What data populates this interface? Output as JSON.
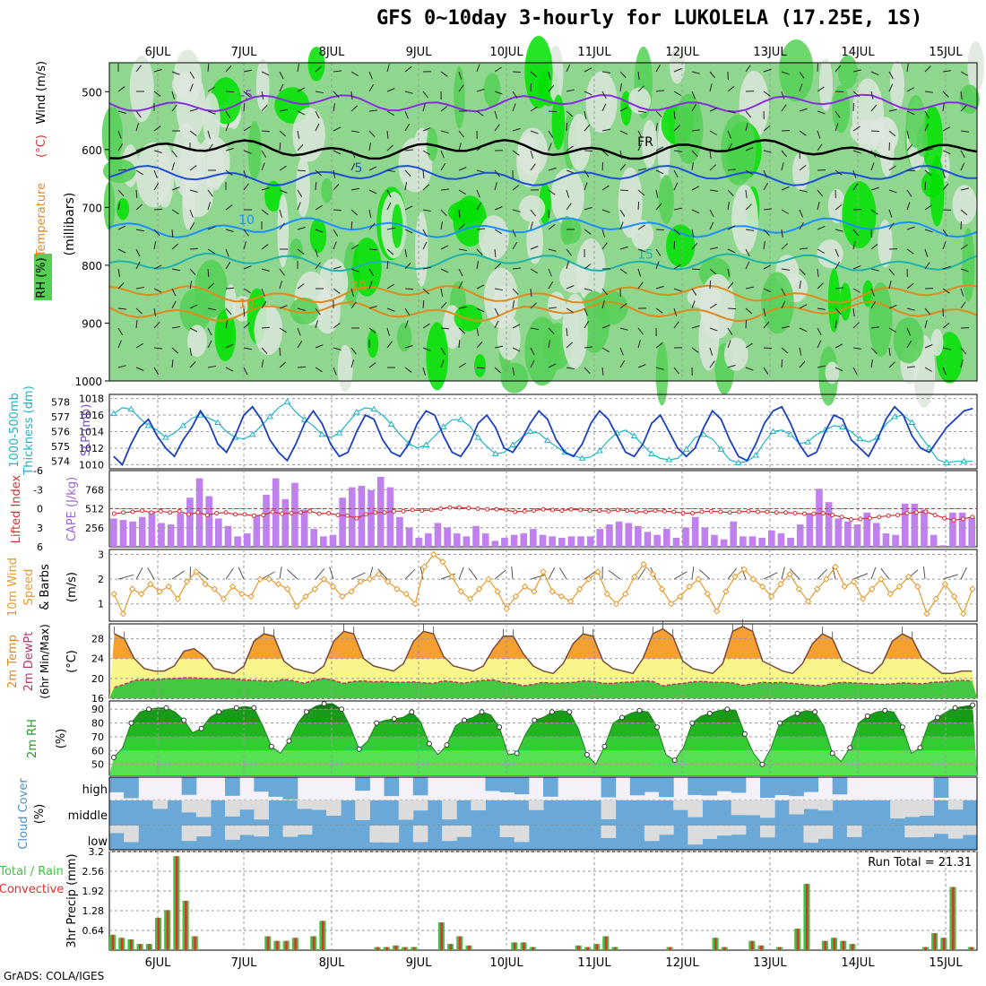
{
  "title": "GFS 0~10day 3-hourly for LUKOLELA (17.25E, 1S)",
  "credit": "GrADS: COLA/IGES",
  "chart_data": [
    {
      "panel": "upper-air",
      "type": "heatmap",
      "x_tick_labels": [
        "6JUL",
        "7JUL",
        "8JUL",
        "9JUL",
        "10JUL",
        "11JUL",
        "12JUL",
        "13JUL",
        "14JUL",
        "15JUL"
      ],
      "ylabel_parts": [
        "RH (%)",
        "Temperature",
        "(°C)",
        "Wind",
        "(m/s)"
      ],
      "yunit": "(millibars)",
      "y_ticks": [
        500,
        600,
        700,
        800,
        900,
        1000
      ],
      "ylim": [
        1000,
        450
      ],
      "rh_shading": [
        "#dde6dd",
        "#bfd6bf",
        "#8fd68f",
        "#55d055",
        "#00e000"
      ],
      "temperature_contours": [
        {
          "label": "-5",
          "pressure": 520,
          "color": "#8a2be2"
        },
        {
          "label": "FR",
          "pressure": 600,
          "color": "#000000"
        },
        {
          "label": "5",
          "pressure": 645,
          "color": "#1f4fd8"
        },
        {
          "label": "10",
          "pressure": 735,
          "color": "#1e90ff"
        },
        {
          "label": "15",
          "pressure": 795,
          "color": "#20b2aa"
        },
        {
          "label": "20",
          "pressure": 850,
          "color": "#e08a1e"
        },
        {
          "label": "10",
          "pressure": 880,
          "color": "#e08a1e"
        }
      ]
    },
    {
      "panel": "thickness-slp",
      "type": "line",
      "left_axis_label": [
        "1000-500mb",
        "Thickness (dm)"
      ],
      "right_axis_label": [
        "SLP (mb)"
      ],
      "left_ticks": [
        574,
        575,
        576,
        577,
        578
      ],
      "right_ticks": [
        1010,
        1012,
        1014,
        1016,
        1018
      ],
      "ylim_left": [
        573.5,
        578.5
      ],
      "ylim_right": [
        1009.5,
        1018.5
      ],
      "series": [
        {
          "color": "#20b2c8",
          "axis": "left",
          "values": [
            577.2,
            577.6,
            577.5,
            576.9,
            576.4,
            576.1,
            575.6,
            575.9,
            576.4,
            576.9,
            577.1,
            576.9,
            576.6,
            576.0,
            575.6,
            575.5,
            575.8,
            576.4,
            577.0,
            577.6,
            578.0,
            577.3,
            576.8,
            576.4,
            575.8,
            575.6,
            575.9,
            576.6,
            577.3,
            577.6,
            577.5,
            577.1,
            576.5,
            575.8,
            575.2,
            574.9,
            575.1,
            575.7,
            576.3,
            576.8,
            576.8,
            576.4,
            575.6,
            575.0,
            574.5,
            574.6,
            575.1,
            575.6,
            576.0,
            575.9,
            575.4,
            575.0,
            574.6,
            574.4,
            574.2,
            574.3,
            574.7,
            575.4,
            575.9,
            576.1,
            575.7,
            575.1,
            574.5,
            574.2,
            574.1,
            574.2,
            574.8,
            575.6,
            575.8,
            575.5,
            574.8,
            574.1,
            573.9,
            574.0,
            574.4,
            575.3,
            576.0,
            576.1,
            575.8,
            575.2,
            575.3,
            575.8,
            576.1,
            576.4,
            576.3,
            576.0,
            575.5,
            575.3,
            575.6,
            576.5,
            577.0,
            577.1,
            576.6,
            575.7,
            574.9,
            574.1,
            573.9,
            574.0,
            574.0,
            574.0
          ]
        },
        {
          "color": "#1a3fbf",
          "axis": "right",
          "values": [
            1011.0,
            1010.0,
            1012.5,
            1014.5,
            1015.5,
            1013.5,
            1012.0,
            1011.0,
            1013.0,
            1014.5,
            1016.5,
            1015.0,
            1012.5,
            1011.5,
            1013.5,
            1016.0,
            1017.0,
            1015.5,
            1013.0,
            1011.5,
            1010.5,
            1012.5,
            1015.0,
            1016.5,
            1015.0,
            1012.5,
            1011.0,
            1011.5,
            1014.0,
            1016.0,
            1015.5,
            1013.0,
            1011.5,
            1011.0,
            1012.5,
            1015.0,
            1016.5,
            1016.0,
            1013.5,
            1011.5,
            1011.0,
            1012.5,
            1015.0,
            1016.0,
            1014.5,
            1012.0,
            1011.5,
            1013.0,
            1015.0,
            1016.5,
            1015.5,
            1013.0,
            1011.5,
            1011.0,
            1012.5,
            1015.0,
            1016.5,
            1015.5,
            1013.5,
            1011.5,
            1011.0,
            1012.5,
            1015.0,
            1016.0,
            1014.0,
            1012.0,
            1011.0,
            1012.0,
            1014.5,
            1016.5,
            1015.5,
            1013.0,
            1011.0,
            1010.5,
            1012.5,
            1015.0,
            1016.5,
            1017.0,
            1015.0,
            1012.5,
            1011.0,
            1011.5,
            1014.0,
            1016.0,
            1015.5,
            1013.0,
            1012.0,
            1011.0,
            1013.0,
            1015.5,
            1017.0,
            1016.0,
            1013.5,
            1012.0,
            1011.5,
            1013.0,
            1014.5,
            1015.5,
            1016.5,
            1016.8
          ]
        }
      ]
    },
    {
      "panel": "cape-li",
      "type": "bar",
      "left_axis_label": "Lifted Index",
      "right_axis_label": "CAPE (J/kg)",
      "left_ticks": [
        "-6",
        "-3",
        "0",
        "3",
        "6"
      ],
      "right_ticks": [
        256,
        512,
        768
      ],
      "ylim_cape": [
        0,
        1024
      ],
      "cape_values": [
        380,
        360,
        340,
        400,
        460,
        320,
        300,
        450,
        660,
        920,
        680,
        380,
        280,
        140,
        180,
        420,
        700,
        920,
        640,
        860,
        500,
        240,
        140,
        160,
        660,
        800,
        820,
        760,
        940,
        800,
        400,
        260,
        120,
        180,
        320,
        260,
        180,
        140,
        280,
        180,
        80,
        120,
        160,
        180,
        240,
        160,
        140,
        120,
        140,
        140,
        140,
        240,
        300,
        340,
        320,
        280,
        200,
        160,
        240,
        120,
        260,
        400,
        260,
        160,
        100,
        340,
        140,
        140,
        120,
        220,
        180,
        120,
        300,
        440,
        780,
        600,
        380,
        340,
        300,
        460,
        320,
        180,
        160,
        580,
        580,
        500,
        160,
        20,
        460,
        460,
        400
      ],
      "li_values": [
        0.8,
        0.6,
        0.5,
        0.3,
        0.6,
        0.4,
        0.6,
        0.4,
        0.9,
        0.6,
        1.0,
        0.7,
        0.6,
        0.9,
        0.9,
        1.1,
        1.0,
        0.5,
        0.8,
        0.7,
        0.6,
        0.4,
        0.8,
        0.7,
        1.0,
        1.1,
        1.5,
        0.9,
        0.6,
        0.6,
        0.4,
        0.4,
        0.2,
        0.3,
        0.2,
        0.0,
        -0.2,
        -0.2,
        -0.1,
        0.0,
        0.1,
        0.1,
        0.2,
        0.5,
        0.4,
        0.3,
        0.1,
        0.2,
        0.3,
        0.1,
        0.2,
        0.3,
        0.3,
        0.4,
        0.2,
        0.3,
        0.5,
        0.5,
        0.3,
        0.4,
        0.5,
        0.7,
        0.7,
        0.5,
        0.4,
        0.5,
        0.6,
        0.5,
        0.4,
        0.5,
        0.5,
        0.6,
        0.6,
        0.7,
        0.8,
        0.8,
        0.7,
        1.0,
        1.3,
        1.7,
        1.6,
        1.5,
        1.3,
        1.1,
        1.0,
        0.7,
        0.6,
        0.5,
        1.0,
        1.5,
        1.8,
        1.6,
        1.3
      ],
      "li_color": "#d43030",
      "cape_color": "#c080f0"
    },
    {
      "panel": "10m-wind",
      "type": "line",
      "axis_label": [
        "10m Wind",
        "Speed",
        "& Barbs"
      ],
      "unit": "(m/s)",
      "y_ticks": [
        1,
        2,
        3
      ],
      "ylim": [
        0.3,
        3.2
      ],
      "series": [
        {
          "color": "#e69a2e",
          "values": [
            1.4,
            0.6,
            1.6,
            1.4,
            1.8,
            1.5,
            1.7,
            1.2,
            1.9,
            2.3,
            1.8,
            1.6,
            1.2,
            1.7,
            1.4,
            1.3,
            2.0,
            2.0,
            1.8,
            1.6,
            0.9,
            1.3,
            1.6,
            2.0,
            1.7,
            1.3,
            1.5,
            1.9,
            2.0,
            2.2,
            1.9,
            1.6,
            1.4,
            1.0,
            2.5,
            3.0,
            2.7,
            2.1,
            1.5,
            1.2,
            1.6,
            2.0,
            1.5,
            0.8,
            1.3,
            1.7,
            1.5,
            2.3,
            1.5,
            1.3,
            1.1,
            1.6,
            2.0,
            2.3,
            1.4,
            1.0,
            1.4,
            2.1,
            2.6,
            2.2,
            1.6,
            1.0,
            1.3,
            1.7,
            2.0,
            1.4,
            0.7,
            1.5,
            2.1,
            2.4,
            2.0,
            1.7,
            1.3,
            1.8,
            2.2,
            1.6,
            1.1,
            1.6,
            2.0,
            2.5,
            1.7,
            1.9,
            1.2,
            1.6,
            2.0,
            1.4,
            1.7,
            2.1,
            1.7,
            0.6,
            1.2,
            1.8,
            1.3,
            0.6,
            1.6
          ]
        }
      ]
    },
    {
      "panel": "2m-temp",
      "type": "area",
      "axis_label": [
        "2m Temp",
        "2m DewPt",
        "(6hr Min/Max)"
      ],
      "unit": "(°C)",
      "y_ticks": [
        16,
        20,
        24,
        28
      ],
      "ylim": [
        16,
        31
      ],
      "series": [
        {
          "name": "temp",
          "color": "#7a4a3a",
          "values": [
            29.0,
            28.0,
            24.0,
            22.0,
            21.5,
            21.5,
            22.5,
            25.5,
            26.0,
            24.5,
            22.0,
            21.5,
            21.0,
            22.5,
            27.5,
            29.0,
            28.5,
            23.5,
            22.0,
            21.5,
            21.0,
            22.5,
            27.5,
            29.5,
            29.0,
            24.0,
            22.5,
            22.0,
            21.5,
            23.0,
            27.5,
            29.5,
            29.0,
            24.5,
            22.5,
            22.0,
            21.5,
            22.5,
            26.0,
            28.5,
            28.5,
            25.0,
            22.5,
            21.5,
            21.0,
            23.0,
            27.0,
            29.0,
            28.5,
            23.5,
            22.0,
            21.5,
            21.0,
            24.0,
            29.0,
            30.0,
            28.5,
            23.5,
            22.0,
            21.5,
            21.0,
            23.0,
            29.5,
            30.5,
            29.5,
            23.5,
            22.5,
            21.5,
            21.0,
            23.0,
            27.0,
            29.0,
            28.0,
            23.5,
            22.5,
            21.5,
            21.0,
            23.0,
            27.5,
            29.0,
            28.0,
            24.0,
            22.5,
            21.0,
            21.0,
            21.5,
            21.5
          ]
        },
        {
          "name": "dewpoint",
          "color": "#c0306a",
          "values": [
            18.2,
            18.8,
            19.6,
            19.8,
            19.7,
            19.9,
            20.0,
            20.1,
            20.1,
            20.0,
            19.9,
            20.0,
            19.9,
            19.7,
            19.6,
            19.5,
            19.4,
            19.8,
            19.5,
            19.0,
            19.6,
            20.0,
            19.6,
            19.0,
            19.4,
            19.5,
            19.3,
            19.4,
            19.2,
            19.2,
            19.3,
            19.1,
            19.0,
            19.5,
            19.3,
            19.0,
            19.4,
            19.6,
            19.7,
            19.2,
            19.0,
            18.5,
            18.8,
            19.2,
            19.0,
            19.1,
            19.2,
            19.5,
            19.4,
            19.0,
            19.0,
            19.2,
            19.3,
            19.5,
            19.4,
            18.5,
            18.8,
            19.0,
            19.3,
            19.4,
            19.2,
            19.2,
            19.1,
            18.6,
            18.9,
            19.2,
            19.1,
            19.2,
            19.0,
            18.8,
            18.6,
            18.5,
            19.0,
            19.2,
            19.1,
            19.0,
            18.9,
            18.8,
            18.9,
            19.1,
            19.0,
            18.9,
            19.2,
            19.3,
            19.5,
            19.6,
            19.5
          ]
        }
      ]
    },
    {
      "panel": "2m-rh",
      "type": "area",
      "axis_label": "2m RH",
      "unit": "(%)",
      "y_ticks": [
        50,
        60,
        70,
        80,
        90
      ],
      "ylim": [
        42,
        96
      ],
      "series": [
        {
          "name": "rh",
          "color": "#1f7f1f",
          "values": [
            55,
            62,
            80,
            88,
            90,
            91,
            91,
            88,
            82,
            73,
            76,
            84,
            88,
            90,
            91,
            92,
            91,
            78,
            63,
            58,
            67,
            80,
            88,
            92,
            94,
            94,
            90,
            77,
            61,
            67,
            80,
            82,
            83,
            84,
            88,
            81,
            65,
            57,
            64,
            78,
            82,
            84,
            88,
            86,
            77,
            57,
            58,
            72,
            82,
            84,
            88,
            89,
            88,
            76,
            57,
            50,
            63,
            80,
            84,
            87,
            89,
            88,
            77,
            57,
            53,
            62,
            80,
            85,
            87,
            89,
            90,
            89,
            72,
            58,
            50,
            62,
            80,
            84,
            87,
            89,
            88,
            78,
            58,
            52,
            62,
            80,
            85,
            88,
            89,
            88,
            77,
            58,
            62,
            80,
            84,
            88,
            91,
            92,
            93
          ]
        }
      ]
    },
    {
      "panel": "cloud-cover",
      "type": "heatmap",
      "axis_label": "Cloud Cover",
      "unit": "(%)",
      "row_labels": [
        "high",
        "middle",
        "low"
      ],
      "colors": {
        "clear": "#f4f2f8",
        "partial": "#dcdcdc",
        "full": "#6aa8d8"
      }
    },
    {
      "panel": "precip",
      "type": "bar",
      "axis_label": [
        "Total / Rain",
        "Convective"
      ],
      "ylabel": "3hr Precip (mm)",
      "run_total_text": "Run Total = 21.31",
      "y_ticks": [
        "0.64",
        "1.28",
        "1.92",
        "2.56",
        "3.2"
      ],
      "ylim": [
        0,
        3.2
      ],
      "x_tick_labels": [
        "6JUL",
        "7JUL",
        "8JUL",
        "9JUL",
        "10JUL",
        "11JUL",
        "12JUL",
        "13JUL",
        "14JUL",
        "15JUL"
      ],
      "total_color": "#44c044",
      "convective_color": "#e03030",
      "total_values": [
        0.5,
        0.4,
        0.35,
        0.2,
        0.2,
        1.05,
        1.3,
        3.05,
        1.6,
        0.45,
        0,
        0,
        0,
        0,
        0,
        0,
        0,
        0.45,
        0.3,
        0.3,
        0.4,
        0,
        0.45,
        0.95,
        0,
        0,
        0,
        0,
        0,
        0.1,
        0.1,
        0.15,
        0.1,
        0.1,
        0,
        0,
        0.9,
        0.2,
        0.45,
        0.15,
        0,
        0,
        0,
        0,
        0.25,
        0.25,
        0.1,
        0,
        0,
        0,
        0,
        0.15,
        0.1,
        0.2,
        0.45,
        0.1,
        0,
        0,
        0,
        0,
        0,
        0.1,
        0,
        0,
        0,
        0,
        0.4,
        0.1,
        0,
        0,
        0.3,
        0.15,
        0,
        0.1,
        0,
        0.7,
        2.15,
        0,
        0.3,
        0.4,
        0.3,
        0.2,
        0,
        0,
        0,
        0,
        0,
        0,
        0,
        0.1,
        0.55,
        0.4,
        2.05,
        0,
        0.1
      ]
    }
  ]
}
